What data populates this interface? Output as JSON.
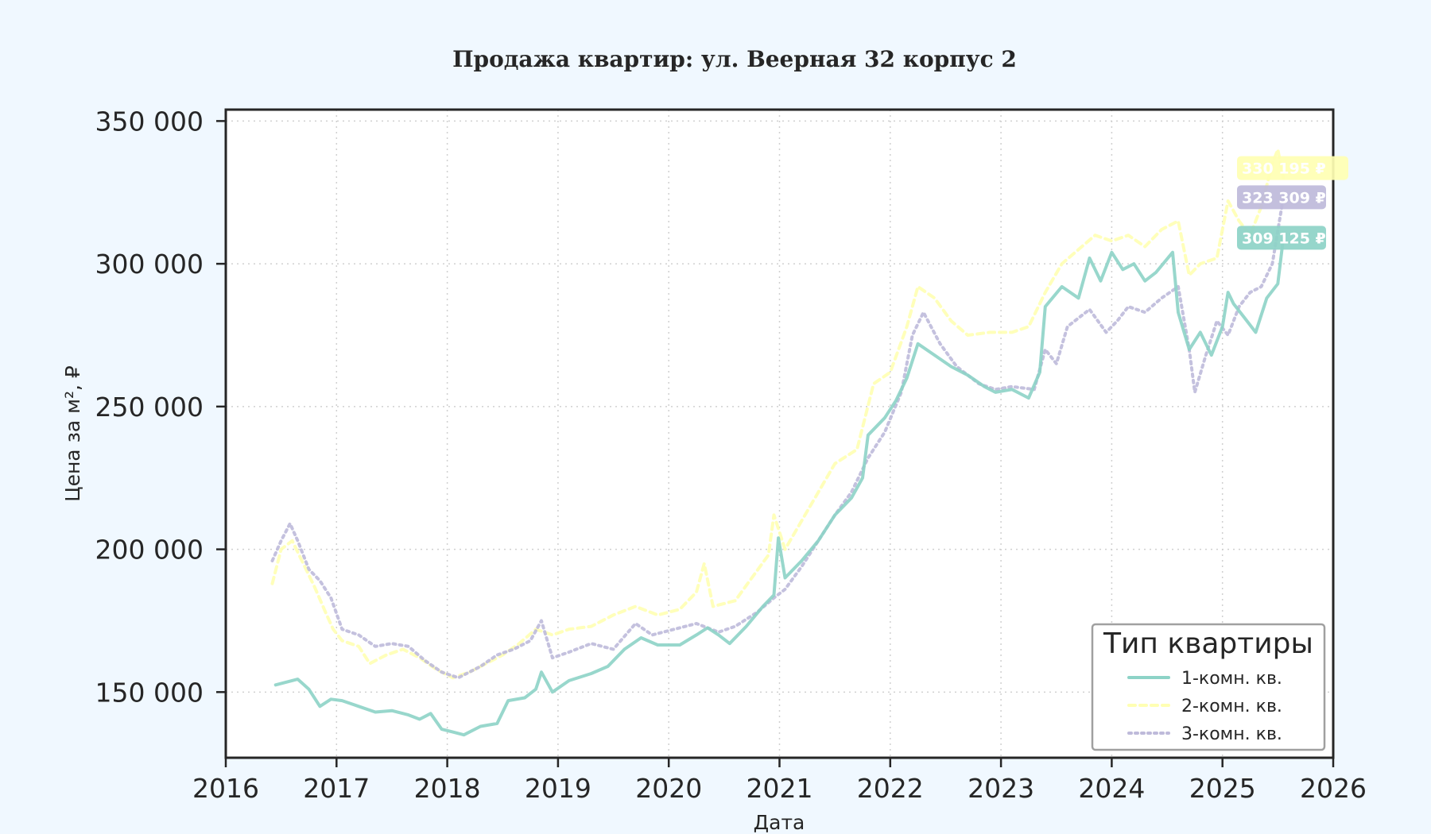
{
  "chart_data": {
    "type": "line",
    "title": "Продажа квартир: ул. Веерная 32 корпус 2",
    "xlabel": "Дата",
    "ylabel": "Цена за м², ₽",
    "xlim": [
      2016,
      2026
    ],
    "ylim": [
      127000,
      354000
    ],
    "x_ticks": [
      "2016",
      "2017",
      "2018",
      "2019",
      "2020",
      "2021",
      "2022",
      "2023",
      "2024",
      "2025",
      "2026"
    ],
    "y_ticks": [
      {
        "value": 150000,
        "label": "150 000"
      },
      {
        "value": 200000,
        "label": "200 000"
      },
      {
        "value": 250000,
        "label": "250 000"
      },
      {
        "value": 300000,
        "label": "300 000"
      },
      {
        "value": 350000,
        "label": "350 000"
      }
    ],
    "grid": true,
    "legend": {
      "title": "Тип квартиры",
      "position": "bottom-right"
    },
    "series": [
      {
        "name": "1-комн. кв.",
        "color": "#8dd3c7",
        "style": "solid",
        "end_label": "309 125 ₽",
        "points": [
          [
            2016.45,
            152500
          ],
          [
            2016.55,
            153500
          ],
          [
            2016.65,
            154500
          ],
          [
            2016.75,
            151000
          ],
          [
            2016.85,
            145000
          ],
          [
            2016.95,
            147500
          ],
          [
            2017.05,
            147000
          ],
          [
            2017.2,
            145000
          ],
          [
            2017.35,
            143000
          ],
          [
            2017.5,
            143500
          ],
          [
            2017.65,
            142000
          ],
          [
            2017.75,
            140500
          ],
          [
            2017.85,
            142500
          ],
          [
            2017.95,
            137000
          ],
          [
            2018.05,
            136000
          ],
          [
            2018.15,
            135000
          ],
          [
            2018.3,
            138000
          ],
          [
            2018.45,
            139000
          ],
          [
            2018.55,
            147000
          ],
          [
            2018.7,
            148000
          ],
          [
            2018.8,
            151000
          ],
          [
            2018.85,
            157000
          ],
          [
            2018.95,
            150000
          ],
          [
            2019.1,
            154000
          ],
          [
            2019.3,
            156500
          ],
          [
            2019.45,
            159000
          ],
          [
            2019.6,
            165000
          ],
          [
            2019.75,
            169000
          ],
          [
            2019.9,
            166500
          ],
          [
            2020.1,
            166500
          ],
          [
            2020.25,
            170000
          ],
          [
            2020.35,
            172500
          ],
          [
            2020.45,
            170000
          ],
          [
            2020.55,
            167000
          ],
          [
            2020.7,
            173000
          ],
          [
            2020.85,
            180000
          ],
          [
            2020.95,
            184000
          ],
          [
            2020.99,
            204000
          ],
          [
            2021.05,
            190000
          ],
          [
            2021.2,
            196000
          ],
          [
            2021.35,
            203000
          ],
          [
            2021.5,
            212000
          ],
          [
            2021.65,
            218000
          ],
          [
            2021.75,
            225000
          ],
          [
            2021.8,
            240000
          ],
          [
            2021.95,
            246000
          ],
          [
            2022.05,
            252000
          ],
          [
            2022.15,
            260000
          ],
          [
            2022.25,
            272000
          ],
          [
            2022.4,
            268000
          ],
          [
            2022.55,
            264000
          ],
          [
            2022.7,
            261000
          ],
          [
            2022.85,
            257000
          ],
          [
            2022.95,
            255000
          ],
          [
            2023.1,
            256000
          ],
          [
            2023.25,
            253000
          ],
          [
            2023.35,
            262000
          ],
          [
            2023.4,
            285000
          ],
          [
            2023.55,
            292000
          ],
          [
            2023.7,
            288000
          ],
          [
            2023.8,
            302000
          ],
          [
            2023.9,
            294000
          ],
          [
            2024.0,
            304000
          ],
          [
            2024.1,
            298000
          ],
          [
            2024.2,
            300000
          ],
          [
            2024.3,
            294000
          ],
          [
            2024.4,
            297000
          ],
          [
            2024.55,
            304000
          ],
          [
            2024.6,
            283000
          ],
          [
            2024.7,
            270000
          ],
          [
            2024.8,
            276000
          ],
          [
            2024.9,
            268000
          ],
          [
            2025.0,
            278000
          ],
          [
            2025.05,
            290000
          ],
          [
            2025.1,
            286000
          ],
          [
            2025.2,
            281000
          ],
          [
            2025.3,
            276000
          ],
          [
            2025.4,
            288000
          ],
          [
            2025.5,
            293000
          ],
          [
            2025.55,
            309125
          ]
        ]
      },
      {
        "name": "2-комн. кв.",
        "color": "#ffffb3",
        "style": "dashed",
        "end_label": "330 195 ₽",
        "points": [
          [
            2016.42,
            188000
          ],
          [
            2016.5,
            200000
          ],
          [
            2016.6,
            203000
          ],
          [
            2016.7,
            195000
          ],
          [
            2016.8,
            187000
          ],
          [
            2016.9,
            178000
          ],
          [
            2016.97,
            172000
          ],
          [
            2017.05,
            168000
          ],
          [
            2017.2,
            166000
          ],
          [
            2017.3,
            160000
          ],
          [
            2017.45,
            163000
          ],
          [
            2017.6,
            165000
          ],
          [
            2017.75,
            162000
          ],
          [
            2017.9,
            158000
          ],
          [
            2018.05,
            155000
          ],
          [
            2018.2,
            157000
          ],
          [
            2018.35,
            160000
          ],
          [
            2018.5,
            163000
          ],
          [
            2018.65,
            167000
          ],
          [
            2018.8,
            172000
          ],
          [
            2018.95,
            170000
          ],
          [
            2019.1,
            172000
          ],
          [
            2019.3,
            173000
          ],
          [
            2019.5,
            177000
          ],
          [
            2019.7,
            180000
          ],
          [
            2019.9,
            177000
          ],
          [
            2020.1,
            179000
          ],
          [
            2020.25,
            185000
          ],
          [
            2020.32,
            195000
          ],
          [
            2020.4,
            180000
          ],
          [
            2020.6,
            182000
          ],
          [
            2020.75,
            190000
          ],
          [
            2020.9,
            198000
          ],
          [
            2020.95,
            212000
          ],
          [
            2021.05,
            200000
          ],
          [
            2021.2,
            210000
          ],
          [
            2021.35,
            220000
          ],
          [
            2021.5,
            230000
          ],
          [
            2021.7,
            235000
          ],
          [
            2021.85,
            258000
          ],
          [
            2022.0,
            262000
          ],
          [
            2022.15,
            278000
          ],
          [
            2022.25,
            292000
          ],
          [
            2022.4,
            288000
          ],
          [
            2022.55,
            280000
          ],
          [
            2022.7,
            275000
          ],
          [
            2022.9,
            276000
          ],
          [
            2023.1,
            276000
          ],
          [
            2023.25,
            278000
          ],
          [
            2023.4,
            290000
          ],
          [
            2023.55,
            300000
          ],
          [
            2023.7,
            305000
          ],
          [
            2023.85,
            310000
          ],
          [
            2024.0,
            308000
          ],
          [
            2024.15,
            310000
          ],
          [
            2024.3,
            306000
          ],
          [
            2024.45,
            312000
          ],
          [
            2024.6,
            315000
          ],
          [
            2024.7,
            296000
          ],
          [
            2024.8,
            300000
          ],
          [
            2024.95,
            302000
          ],
          [
            2025.05,
            322000
          ],
          [
            2025.15,
            315000
          ],
          [
            2025.25,
            310000
          ],
          [
            2025.35,
            320000
          ],
          [
            2025.45,
            335000
          ],
          [
            2025.5,
            340000
          ],
          [
            2025.55,
            330195
          ]
        ]
      },
      {
        "name": "3-комн. кв.",
        "color": "#bebada",
        "style": "dotted",
        "end_label": "323 309 ₽",
        "points": [
          [
            2016.42,
            196000
          ],
          [
            2016.5,
            203000
          ],
          [
            2016.58,
            209000
          ],
          [
            2016.65,
            203000
          ],
          [
            2016.75,
            193000
          ],
          [
            2016.85,
            189000
          ],
          [
            2016.95,
            183000
          ],
          [
            2017.05,
            172000
          ],
          [
            2017.2,
            170000
          ],
          [
            2017.35,
            166000
          ],
          [
            2017.5,
            167000
          ],
          [
            2017.65,
            166000
          ],
          [
            2017.8,
            161000
          ],
          [
            2017.95,
            157000
          ],
          [
            2018.1,
            155000
          ],
          [
            2018.3,
            159000
          ],
          [
            2018.45,
            163000
          ],
          [
            2018.6,
            165000
          ],
          [
            2018.75,
            168000
          ],
          [
            2018.85,
            175000
          ],
          [
            2018.95,
            162000
          ],
          [
            2019.1,
            164000
          ],
          [
            2019.3,
            167000
          ],
          [
            2019.5,
            165000
          ],
          [
            2019.7,
            174000
          ],
          [
            2019.85,
            170000
          ],
          [
            2020.05,
            172000
          ],
          [
            2020.25,
            174000
          ],
          [
            2020.45,
            171000
          ],
          [
            2020.6,
            173000
          ],
          [
            2020.8,
            178000
          ],
          [
            2020.95,
            183000
          ],
          [
            2021.05,
            186000
          ],
          [
            2021.2,
            194000
          ],
          [
            2021.35,
            203000
          ],
          [
            2021.5,
            212000
          ],
          [
            2021.65,
            220000
          ],
          [
            2021.8,
            232000
          ],
          [
            2021.95,
            241000
          ],
          [
            2022.1,
            255000
          ],
          [
            2022.2,
            275000
          ],
          [
            2022.3,
            283000
          ],
          [
            2022.45,
            272000
          ],
          [
            2022.6,
            264000
          ],
          [
            2022.8,
            258000
          ],
          [
            2022.95,
            256000
          ],
          [
            2023.1,
            257000
          ],
          [
            2023.3,
            256000
          ],
          [
            2023.4,
            270000
          ],
          [
            2023.5,
            265000
          ],
          [
            2023.6,
            278000
          ],
          [
            2023.8,
            284000
          ],
          [
            2023.95,
            276000
          ],
          [
            2024.05,
            280000
          ],
          [
            2024.15,
            285000
          ],
          [
            2024.3,
            283000
          ],
          [
            2024.45,
            288000
          ],
          [
            2024.6,
            292000
          ],
          [
            2024.7,
            270000
          ],
          [
            2024.75,
            255000
          ],
          [
            2024.85,
            268000
          ],
          [
            2024.95,
            280000
          ],
          [
            2025.05,
            275000
          ],
          [
            2025.15,
            285000
          ],
          [
            2025.25,
            290000
          ],
          [
            2025.35,
            292000
          ],
          [
            2025.45,
            300000
          ],
          [
            2025.55,
            323309
          ]
        ]
      }
    ]
  }
}
